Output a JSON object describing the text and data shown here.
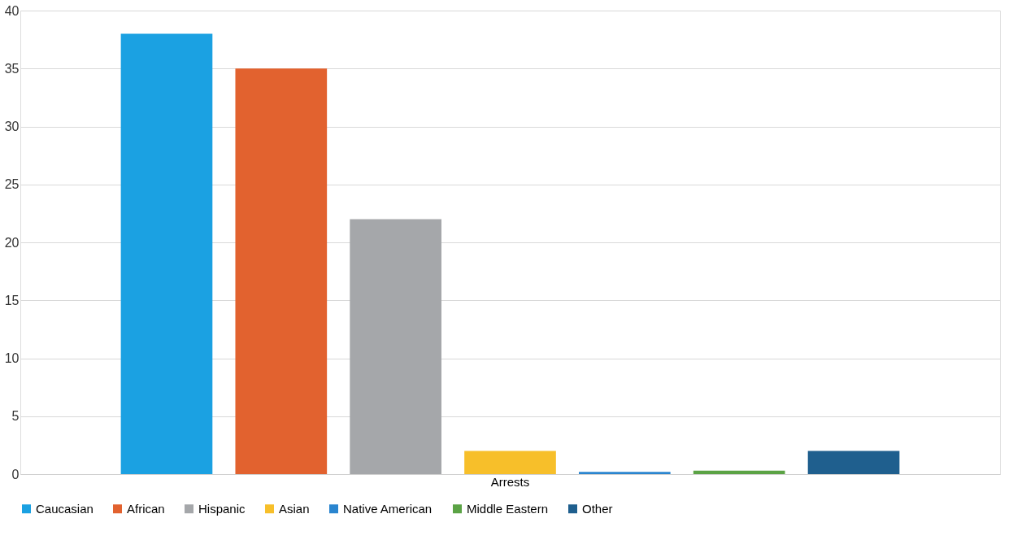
{
  "chart_data": {
    "type": "bar",
    "categories": [
      "Arrests"
    ],
    "series": [
      {
        "name": "Caucasian",
        "color": "#1ba1e2",
        "values": [
          38
        ]
      },
      {
        "name": "African",
        "color": "#e2622f",
        "values": [
          35
        ]
      },
      {
        "name": "Hispanic",
        "color": "#a5a7aa",
        "values": [
          22
        ]
      },
      {
        "name": "Asian",
        "color": "#f7bf2a",
        "values": [
          2
        ]
      },
      {
        "name": "Native American",
        "color": "#2a85cf",
        "values": [
          0.2
        ]
      },
      {
        "name": "Middle Eastern",
        "color": "#5ba345",
        "values": [
          0.3
        ]
      },
      {
        "name": "Other",
        "color": "#1f5f8e",
        "values": [
          2
        ]
      }
    ],
    "ylim": [
      0,
      40
    ],
    "yticks": [
      0,
      5,
      10,
      15,
      20,
      25,
      30,
      35,
      40
    ],
    "grid": "y",
    "legend": "bottom"
  }
}
